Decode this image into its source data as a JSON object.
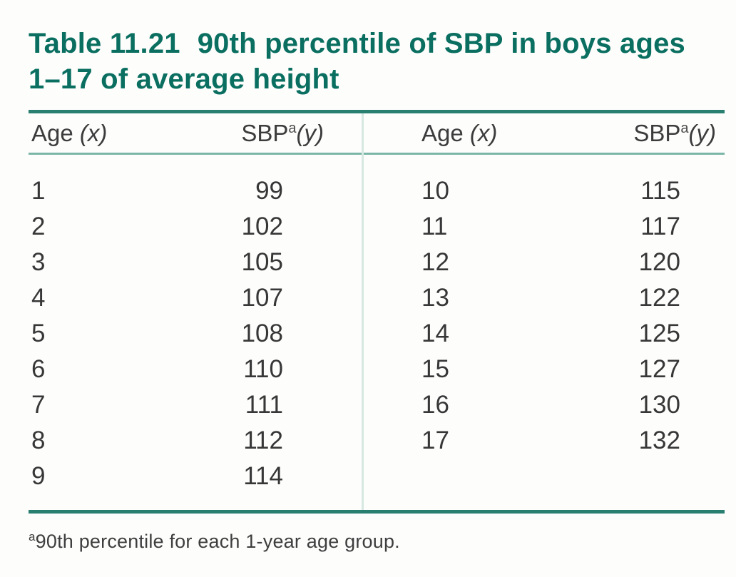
{
  "title": {
    "number": "Table 11.21",
    "line1": "90th percentile of SBP in boys ages",
    "line2": "1–17 of average height"
  },
  "header": {
    "age_label": "Age ",
    "age_var": "(x)",
    "sbp_label": "SBP",
    "sbp_sup": "a",
    "sbp_var": "(y)"
  },
  "rows_left": [
    {
      "age": "1",
      "sbp": "99"
    },
    {
      "age": "2",
      "sbp": "102"
    },
    {
      "age": "3",
      "sbp": "105"
    },
    {
      "age": "4",
      "sbp": "107"
    },
    {
      "age": "5",
      "sbp": "108"
    },
    {
      "age": "6",
      "sbp": "110"
    },
    {
      "age": "7",
      "sbp": "111"
    },
    {
      "age": "8",
      "sbp": "112"
    },
    {
      "age": "9",
      "sbp": "114"
    }
  ],
  "rows_right": [
    {
      "age": "10",
      "sbp": "115"
    },
    {
      "age": "11",
      "sbp": "117"
    },
    {
      "age": "12",
      "sbp": "120"
    },
    {
      "age": "13",
      "sbp": "122"
    },
    {
      "age": "14",
      "sbp": "125"
    },
    {
      "age": "15",
      "sbp": "127"
    },
    {
      "age": "16",
      "sbp": "130"
    },
    {
      "age": "17",
      "sbp": "132"
    }
  ],
  "footnote": {
    "sup": "a",
    "text": "90th percentile for each 1-year age group."
  },
  "colors": {
    "title_teal": "#0a6f60",
    "rule_dark_teal": "#2a8070",
    "rule_light_teal": "#7cb6a7",
    "divider_pale_teal": "#d5e8e2",
    "body_text": "#373737"
  },
  "chart_data": {
    "type": "table",
    "title": "Table 11.21 90th percentile of SBP in boys ages 1–17 of average height",
    "columns": [
      "Age (x)",
      "SBP (y)"
    ],
    "age_x": [
      1,
      2,
      3,
      4,
      5,
      6,
      7,
      8,
      9,
      10,
      11,
      12,
      13,
      14,
      15,
      16,
      17
    ],
    "sbp_y": [
      99,
      102,
      105,
      107,
      108,
      110,
      111,
      112,
      114,
      115,
      117,
      120,
      122,
      125,
      127,
      130,
      132
    ],
    "footnote": "90th percentile for each 1-year age group."
  }
}
